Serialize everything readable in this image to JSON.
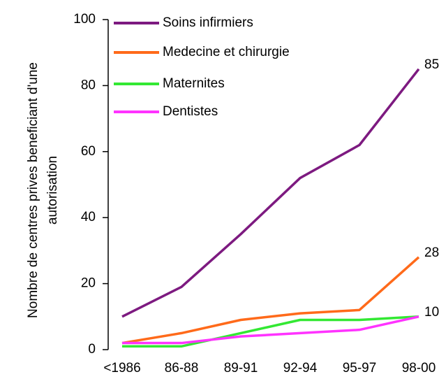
{
  "chart_data": {
    "type": "line",
    "ylabel": [
      "Nombre de centres prives beneficiant d'une",
      "autorisation"
    ],
    "categories": [
      "<1986",
      "86-88",
      "89-91",
      "92-94",
      "95-97",
      "98-00"
    ],
    "series": [
      {
        "name": "Soins infirmiers",
        "color": "#7d1a80",
        "values": [
          10,
          19,
          35,
          52,
          62,
          85
        ],
        "label_last": true
      },
      {
        "name": "Medecine et chirurgie",
        "color": "#ff6a1a",
        "values": [
          2,
          5,
          9,
          11,
          12,
          28
        ],
        "label_last": true
      },
      {
        "name": "Maternites",
        "color": "#33e833",
        "values": [
          1,
          1,
          5,
          9,
          9,
          10
        ],
        "label_last": true
      },
      {
        "name": "Dentistes",
        "color": "#ff33ff",
        "values": [
          2,
          2,
          4,
          5,
          6,
          10
        ],
        "label_last": false
      }
    ],
    "ylim": [
      0,
      100
    ],
    "yticks": [
      0,
      20,
      40,
      60,
      80,
      100
    ],
    "legend": "top-left",
    "grid": false
  }
}
